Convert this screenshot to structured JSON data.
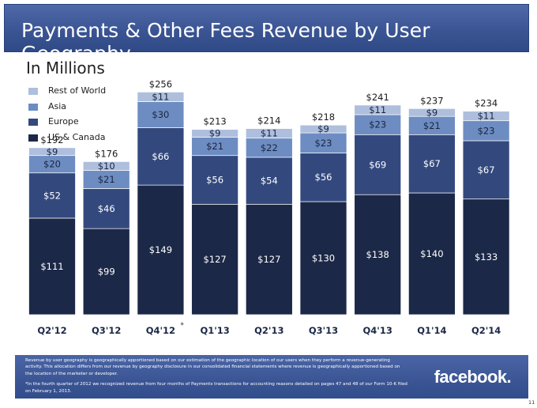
{
  "slide": {
    "title": "Payments & Other Fees Revenue by User Geography",
    "subtitle": "In Millions",
    "page_number": "11",
    "logo_text": "facebook.",
    "footnote": [
      "Revenue by user geography is geographically apportioned based on our estimation of the geographic location of our users when they perform a revenue-generating activity. This allocation differs from our revenue by geography disclosure in our consolidated financial statements where revenue is geographically apportioned based on the location of the marketer or developer.",
      "*In the fourth quarter of 2012 we recognized revenue from four months of Payments transactions for accounting reasons detailed on pages 47 and 48 of our Form 10-K filed on February 1, 2013."
    ]
  },
  "chart_data": {
    "type": "bar",
    "stacked": true,
    "title": "Payments & Other Fees Revenue by User Geography",
    "subtitle": "In Millions",
    "categories": [
      "Q2'12",
      "Q3'12",
      "Q4'12",
      "Q1'13",
      "Q2'13",
      "Q3'13",
      "Q4'13",
      "Q1'14",
      "Q2'14"
    ],
    "category_markers": [
      "",
      "",
      "*",
      "",
      "",
      "",
      "",
      "",
      ""
    ],
    "series": [
      {
        "name": "US & Canada",
        "color": "#1c2847",
        "values": [
          111,
          99,
          149,
          127,
          127,
          130,
          138,
          140,
          133
        ]
      },
      {
        "name": "Europe",
        "color": "#33497e",
        "values": [
          52,
          46,
          66,
          56,
          54,
          56,
          69,
          67,
          67
        ]
      },
      {
        "name": "Asia",
        "color": "#6d8cc2",
        "values": [
          20,
          21,
          30,
          21,
          22,
          23,
          23,
          21,
          23
        ]
      },
      {
        "name": "Rest of World",
        "color": "#aebfdd",
        "values": [
          9,
          10,
          11,
          9,
          11,
          9,
          11,
          9,
          11
        ]
      }
    ],
    "value_labels": [
      [
        "$111",
        "$52",
        "$20",
        "$9"
      ],
      [
        "$99",
        "$46",
        "$21",
        "$10"
      ],
      [
        "$149",
        "$66",
        "$30",
        "$11"
      ],
      [
        "$127",
        "$56",
        "$21",
        "$9"
      ],
      [
        "$127",
        "$54",
        "$22",
        "$11"
      ],
      [
        "$130",
        "$56",
        "$23",
        "$9"
      ],
      [
        "$138",
        "$69",
        "$23",
        "$11"
      ],
      [
        "$140",
        "$67",
        "$21",
        "$9"
      ],
      [
        "$133",
        "$67",
        "$23",
        "$11"
      ]
    ],
    "totals": [
      192,
      176,
      256,
      213,
      214,
      218,
      241,
      237,
      234
    ],
    "total_labels": [
      "$192",
      "$176",
      "$256",
      "$213",
      "$214",
      "$218",
      "$241",
      "$237",
      "$234"
    ],
    "legend": {
      "position": "top-left",
      "order": [
        "Rest of World",
        "Asia",
        "Europe",
        "US & Canada"
      ]
    },
    "ylim": [
      0,
      256
    ],
    "grid": false,
    "value_label_colors": [
      "#ffffff",
      "#ffffff",
      "#1a2540",
      "#1a2540"
    ]
  }
}
